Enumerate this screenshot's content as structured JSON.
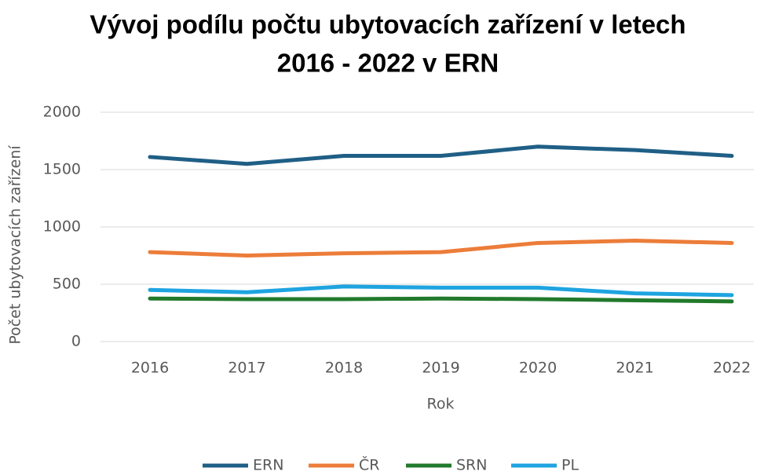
{
  "chart_data": {
    "type": "line",
    "title": [
      "Vývoj podílu počtu ubytovacích zařízení v letech",
      "2016 - 2022 v ERN"
    ],
    "x_label": "Rok",
    "y_label": "Počet  ubytovacích  zařízení",
    "categories": [
      "2016",
      "2017",
      "2018",
      "2019",
      "2020",
      "2021",
      "2022"
    ],
    "series": [
      {
        "name": "ERN",
        "color": "#1f5f86",
        "values": [
          1610,
          1550,
          1620,
          1620,
          1700,
          1670,
          1620
        ]
      },
      {
        "name": "ČR",
        "color": "#ec7d3a",
        "values": [
          780,
          750,
          770,
          780,
          860,
          880,
          860
        ]
      },
      {
        "name": "SRN",
        "color": "#217a2b",
        "values": [
          375,
          370,
          370,
          375,
          370,
          360,
          350
        ]
      },
      {
        "name": "PL",
        "color": "#1ea4e0",
        "values": [
          450,
          430,
          480,
          470,
          470,
          420,
          405
        ]
      }
    ],
    "ylim": [
      0,
      2000
    ],
    "yticks": [
      0,
      500,
      1000,
      1500,
      2000
    ],
    "grid": true,
    "legend": "bottom"
  }
}
